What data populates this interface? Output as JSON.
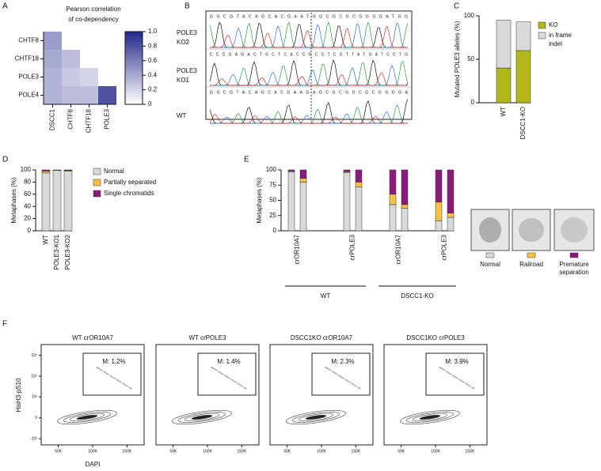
{
  "panel_labels": [
    "A",
    "B",
    "C",
    "D",
    "E",
    "F"
  ],
  "chart_data": [
    {
      "type": "heatmap",
      "title": [
        "Pearson correlation",
        "of co-dependency"
      ],
      "rows": [
        "CHTF8",
        "CHTF18",
        "POLE3",
        "POLE4"
      ],
      "columns": [
        "DSCC1",
        "CHTF8",
        "CHTF18",
        "POLE3"
      ],
      "values": [
        [
          0.45
        ],
        [
          0.4,
          0.3
        ],
        [
          0.35,
          0.25,
          0.2
        ],
        [
          0.35,
          0.3,
          0.3,
          0.8
        ]
      ],
      "colorscale": [
        "#ffffff",
        "#23278a"
      ],
      "clim": [
        0,
        1
      ],
      "cticks": [
        0,
        0.2,
        0.4,
        0.6,
        0.8,
        {
          "value": 1,
          "label": "1.0"
        }
      ]
    },
    {
      "type": "stacked_bar",
      "y_label": "Mutated POLE3 alleles (%)",
      "categories": [
        "WT",
        "DSCC1-KO"
      ],
      "series": [
        {
          "name": [
            "KO"
          ],
          "color": "#b3b81a",
          "values": [
            40,
            60
          ]
        },
        {
          "name": [
            "in frame",
            "indel"
          ],
          "color": "#d9d9d9",
          "values": [
            55,
            33
          ]
        }
      ],
      "ylim": [
        0,
        100
      ],
      "yticks": [
        0,
        50,
        100
      ]
    },
    {
      "type": "stacked_bar",
      "y_label": "Metaphases (%)",
      "categories": [
        "WT",
        "POLE3-KO1",
        "POLE3-KO2"
      ],
      "series": [
        {
          "name": [
            "Normal"
          ],
          "color": "#d9d9d9",
          "values": [
            95,
            99,
            98
          ]
        },
        {
          "name": [
            "Partially separated"
          ],
          "color": "#f6c244",
          "values": [
            3,
            0.5,
            1
          ]
        },
        {
          "name": [
            "Single chromatids"
          ],
          "color": "#8b1a7c",
          "values": [
            2,
            0.5,
            1
          ]
        }
      ],
      "ylim": [
        0,
        100
      ],
      "yticks": [
        0,
        20,
        40,
        60,
        80,
        100
      ]
    },
    {
      "type": "grouped_stacked_bar",
      "y_label": "Metaphases (%)",
      "categories": [
        "crOR10A7",
        "crPOLE3",
        "crOR10A7",
        "crPOLE3"
      ],
      "groups": [
        "WT",
        "DSCC1-KO"
      ],
      "series": [
        {
          "color": "#d9d9d9",
          "values": [
            [
              97,
              80
            ],
            [
              96,
              72
            ],
            [
              43,
              37
            ],
            [
              16,
              22
            ]
          ]
        },
        {
          "color": "#f6c244",
          "values": [
            [
              1,
              6
            ],
            [
              1,
              8
            ],
            [
              17,
              6
            ],
            [
              31,
              7
            ]
          ]
        },
        {
          "color": "#8b1a7c",
          "values": [
            [
              2,
              14
            ],
            [
              3,
              20
            ],
            [
              40,
              57
            ],
            [
              53,
              71
            ]
          ]
        }
      ],
      "ylim": [
        0,
        100
      ],
      "yticks": [
        0,
        25,
        50,
        75,
        100
      ]
    }
  ],
  "chromatograms": {
    "labels": [
      [
        "POLE3",
        "KO2"
      ],
      [
        "POLE3",
        "KO1"
      ],
      [
        "WT"
      ]
    ],
    "sequences": [
      "GGCGTACAGCACGAATGGCGCGCGGGGATGG",
      "CCCGAGACTGCTCACCGCCTCGTTATGATCCTG",
      "GGCGTACAGCACGAAGAGCGCGGCGCGGGGA"
    ]
  },
  "micrographs": {
    "labels": [
      [
        "Normal"
      ],
      [
        "Railroad"
      ],
      [
        "Premature",
        "separation"
      ]
    ],
    "colors": [
      "#d9d9d9",
      "#f6c244",
      "#8b1a7c"
    ]
  },
  "flow": {
    "y_label": "HisH3-pS10",
    "x_label": "DAPI",
    "yscale": "asinh",
    "plots": [
      {
        "title": "WT crOR10A7",
        "gate": "M: 1.2%"
      },
      {
        "title": "WT crPOLE3",
        "gate": "M: 1.4%"
      },
      {
        "title": "DSCC1KO crOR10A7",
        "gate": "M: 2.3%"
      },
      {
        "title": "DSCC1KO crPOLE3",
        "gate": "M: 3.9%"
      }
    ],
    "xlim": [
      25000,
      175000
    ],
    "xticks": [
      {
        "value": 50000,
        "label": "50K"
      },
      {
        "value": 100000,
        "label": "100K"
      },
      {
        "value": 150000,
        "label": "150K"
      }
    ],
    "ylim": [
      -2000,
      330000
    ],
    "yticks": [
      {
        "value": 100000,
        "label": "10⁵"
      },
      {
        "value": 10000,
        "label": "10⁴"
      },
      {
        "value": 1000,
        "label": "10³"
      },
      0,
      {
        "value": -1000,
        "label": "-10³"
      }
    ]
  }
}
